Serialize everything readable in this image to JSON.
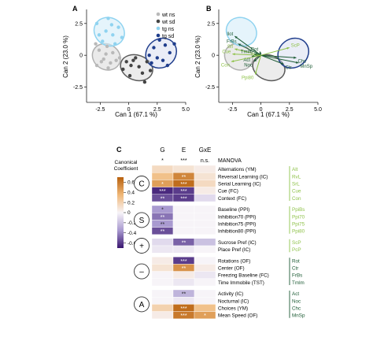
{
  "panels": {
    "A": {
      "label": "A",
      "xlabel": "Can 1 (67.1 %)",
      "ylabel": "Can 2 (23.0 %)",
      "xticks": [
        "-2.5",
        "0",
        "2.5",
        "5.0"
      ],
      "yticks": [
        "2.5",
        "0",
        "-2.5"
      ],
      "legend": [
        "wt ns",
        "wt sd",
        "tg ns",
        "tg sd"
      ]
    },
    "B": {
      "label": "B",
      "xlabel": "Can 1 (67.1 %)",
      "ylabel": "Can 2 (23.0 %)",
      "xticks": [
        "-2.5",
        "0",
        "2.5",
        "5.0"
      ],
      "yticks": [
        "2.5",
        "0",
        "-2.5"
      ],
      "vector_labels": [
        "Ilot",
        "FrBs",
        "Srl",
        "Tmlm",
        "Rot",
        "Act",
        "Noc",
        "Cue",
        "Con",
        "Ppi80",
        "Chc",
        "Ctr",
        "MnSp",
        "ScP"
      ]
    },
    "C": {
      "label": "C",
      "colorbar_title_1": "Canonical",
      "colorbar_title_2": "Coefficient",
      "colorbar_ticks": [
        "0.6",
        "0.4",
        "0.2",
        "0",
        "-0.2",
        "-0.4",
        "-0.6"
      ],
      "col_headers": [
        "G",
        "E",
        "GxE"
      ],
      "manova_label": "MANOVA",
      "manova": [
        "*",
        "***",
        "n.s."
      ]
    }
  },
  "chart_data": [
    {
      "type": "scatter",
      "panel": "A",
      "xlabel": "Can 1 (67.1 %)",
      "ylabel": "Can 2 (23.0 %)",
      "xlim": [
        -3.7,
        5.0
      ],
      "ylim": [
        -3.7,
        3.6
      ],
      "series": [
        {
          "name": "wt ns",
          "color": "#b9b9b9",
          "points": [
            [
              -2.6,
              0.4
            ],
            [
              -2.2,
              -0.3
            ],
            [
              -1.9,
              0.7
            ],
            [
              -2.8,
              -0.8
            ],
            [
              -1.6,
              -0.6
            ],
            [
              -2.0,
              0.1
            ],
            [
              -1.1,
              -0.4
            ],
            [
              -2.4,
              -0.5
            ],
            [
              -1.4,
              0.2
            ],
            [
              -2.9,
              0.9
            ],
            [
              -1.8,
              -1.0
            ],
            [
              -0.8,
              -0.2
            ]
          ]
        },
        {
          "name": "wt sd",
          "color": "#444444",
          "points": [
            [
              0.2,
              -0.8
            ],
            [
              0.6,
              -0.2
            ],
            [
              1.2,
              -1.4
            ],
            [
              -0.5,
              -1.1
            ],
            [
              0.9,
              -0.9
            ],
            [
              1.6,
              -0.5
            ],
            [
              0.1,
              -1.6
            ],
            [
              1.4,
              -2.1
            ],
            [
              0.4,
              -0.4
            ],
            [
              1.9,
              -1.2
            ],
            [
              -0.2,
              -0.5
            ]
          ]
        },
        {
          "name": "tg ns",
          "color": "#8fd3f0",
          "points": [
            [
              -2.8,
              2.5
            ],
            [
              -1.8,
              2.9
            ],
            [
              -1.4,
              1.6
            ],
            [
              -2.3,
              1.1
            ],
            [
              -0.6,
              1.4
            ],
            [
              -1.5,
              2.4
            ],
            [
              -2.6,
              1.6
            ],
            [
              -0.9,
              2.2
            ],
            [
              -1.2,
              0.9
            ],
            [
              -2.0,
              1.9
            ]
          ]
        },
        {
          "name": "tg sd",
          "color": "#1f3d8c",
          "points": [
            [
              2.5,
              -0.2
            ],
            [
              2.2,
              0.6
            ],
            [
              3.2,
              0.8
            ],
            [
              3.6,
              0.2
            ],
            [
              3.0,
              -0.4
            ],
            [
              1.8,
              0.0
            ],
            [
              4.0,
              0.9
            ],
            [
              2.7,
              1.2
            ],
            [
              3.4,
              -0.8
            ],
            [
              2.0,
              -0.6
            ]
          ]
        }
      ]
    },
    {
      "type": "biplot",
      "panel": "B",
      "xlabel": "Can 1 (67.1 %)",
      "ylabel": "Can 2 (23.0 %)",
      "xlim": [
        -3.7,
        5.0
      ],
      "ylim": [
        -3.7,
        3.6
      ],
      "vectors": [
        {
          "label": "Ilot",
          "x": -2.3,
          "y": 1.5,
          "color": "#1b5a33"
        },
        {
          "label": "FrBs",
          "x": -2.0,
          "y": 0.9,
          "color": "#1b5a33"
        },
        {
          "label": "Srl",
          "x": -2.3,
          "y": 0.5,
          "color": "#8fc24a"
        },
        {
          "label": "Tmlm",
          "x": -0.6,
          "y": 0.1,
          "color": "#1b5a33"
        },
        {
          "label": "Rot",
          "x": -0.1,
          "y": 0.3,
          "color": "#1b5a33"
        },
        {
          "label": "Act",
          "x": -0.8,
          "y": -0.1,
          "color": "#1b5a33"
        },
        {
          "label": "Noc",
          "x": -0.6,
          "y": -0.5,
          "color": "#1b5a33"
        },
        {
          "label": "Cue",
          "x": -2.5,
          "y": 0.1,
          "color": "#8fc24a"
        },
        {
          "label": "Con",
          "x": -2.6,
          "y": -0.5,
          "color": "#8fc24a"
        },
        {
          "label": "Ppi80",
          "x": -0.5,
          "y": -1.5,
          "color": "#8fc24a"
        },
        {
          "label": "Chc",
          "x": 3.1,
          "y": -0.2,
          "color": "#1b5a33"
        },
        {
          "label": "Ctr",
          "x": 2.0,
          "y": -0.7,
          "color": "#1b5a33"
        },
        {
          "label": "MnSp",
          "x": 3.3,
          "y": -0.6,
          "color": "#1b5a33"
        },
        {
          "label": "ScP",
          "x": 2.5,
          "y": 0.6,
          "color": "#8fc24a"
        }
      ]
    },
    {
      "type": "heatmap",
      "panel": "C",
      "columns": [
        "G",
        "E",
        "GxE"
      ],
      "color_range": [
        -0.7,
        0.7
      ],
      "groups": [
        {
          "label": "C",
          "rows": [
            {
              "name": "Alternations (YM)",
              "abbr": "Alt",
              "values": [
                0.15,
                0.1,
                0.05
              ],
              "stars": [
                "",
                "",
                ""
              ]
            },
            {
              "name": "Reversal Learning (IC)",
              "abbr": "RvL",
              "values": [
                0.3,
                0.55,
                0.1
              ],
              "stars": [
                "",
                "**",
                ""
              ]
            },
            {
              "name": "Serial Learning (IC)",
              "abbr": "SrL",
              "values": [
                0.45,
                0.65,
                0.15
              ],
              "stars": [
                "*",
                "***",
                ""
              ]
            },
            {
              "name": "Cue (FC)",
              "abbr": "Cue",
              "values": [
                -0.65,
                -0.6,
                0.05
              ],
              "stars": [
                "***",
                "***",
                ""
              ]
            },
            {
              "name": "Context (FC)",
              "abbr": "Con",
              "values": [
                -0.55,
                -0.6,
                -0.1
              ],
              "stars": [
                "**",
                "***",
                ""
              ]
            }
          ]
        },
        {
          "label": "S",
          "rows": [
            {
              "name": "Baseline (PPI)",
              "abbr": "PpiBs",
              "values": [
                -0.35,
                0.0,
                0.0
              ],
              "stars": [
                "*",
                "",
                ""
              ]
            },
            {
              "name": "Inhibition70 (PPI)",
              "abbr": "Ppi70",
              "values": [
                -0.45,
                0.0,
                0.0
              ],
              "stars": [
                "**",
                "",
                ""
              ]
            },
            {
              "name": "Inhibition75 (PPI)",
              "abbr": "Ppi75",
              "values": [
                -0.35,
                0.0,
                0.0
              ],
              "stars": [
                "**",
                "",
                ""
              ]
            },
            {
              "name": "Inhibition80 (PPI)",
              "abbr": "Ppi80",
              "values": [
                -0.55,
                0.0,
                0.0
              ],
              "stars": [
                "**",
                "",
                ""
              ]
            }
          ]
        },
        {
          "label": "+",
          "rows": [
            {
              "name": "Sucrose Pref (IC)",
              "abbr": "ScP",
              "values": [
                -0.1,
                -0.5,
                -0.2
              ],
              "stars": [
                "",
                "**",
                ""
              ]
            },
            {
              "name": "Place Pref (IC)",
              "abbr": "PcP",
              "values": [
                -0.05,
                -0.05,
                0.0
              ],
              "stars": [
                "",
                "",
                ""
              ]
            }
          ]
        },
        {
          "label": "–",
          "rows": [
            {
              "name": "Rotations (OF)",
              "abbr": "Rot",
              "values": [
                0.05,
                -0.6,
                0.0
              ],
              "stars": [
                "",
                "***",
                ""
              ]
            },
            {
              "name": "Center (OF)",
              "abbr": "Ctr",
              "values": [
                0.1,
                0.5,
                0.05
              ],
              "stars": [
                "",
                "**",
                ""
              ]
            },
            {
              "name": "Freezing Baseline (FC)",
              "abbr": "FrBs",
              "values": [
                0.0,
                0.05,
                -0.05
              ],
              "stars": [
                "",
                "",
                ""
              ]
            },
            {
              "name": "Time Immobile (TST)",
              "abbr": "Tmlm",
              "values": [
                0.0,
                -0.05,
                0.0
              ],
              "stars": [
                "",
                "",
                ""
              ]
            }
          ]
        },
        {
          "label": "A",
          "rows": [
            {
              "name": "Activity (IC)",
              "abbr": "Act",
              "values": [
                0.0,
                -0.25,
                0.0
              ],
              "stars": [
                "",
                "**",
                ""
              ]
            },
            {
              "name": "Nocturnal (IC)",
              "abbr": "Noc",
              "values": [
                0.0,
                -0.05,
                0.0
              ],
              "stars": [
                "",
                "",
                ""
              ]
            },
            {
              "name": "Choices (YM)",
              "abbr": "Chc",
              "values": [
                0.2,
                0.65,
                0.3
              ],
              "stars": [
                "",
                "***",
                ""
              ]
            },
            {
              "name": "Mean Speed (OF)",
              "abbr": "MnSp",
              "values": [
                0.05,
                0.6,
                0.45
              ],
              "stars": [
                "",
                "***",
                "*"
              ]
            }
          ]
        }
      ]
    }
  ]
}
